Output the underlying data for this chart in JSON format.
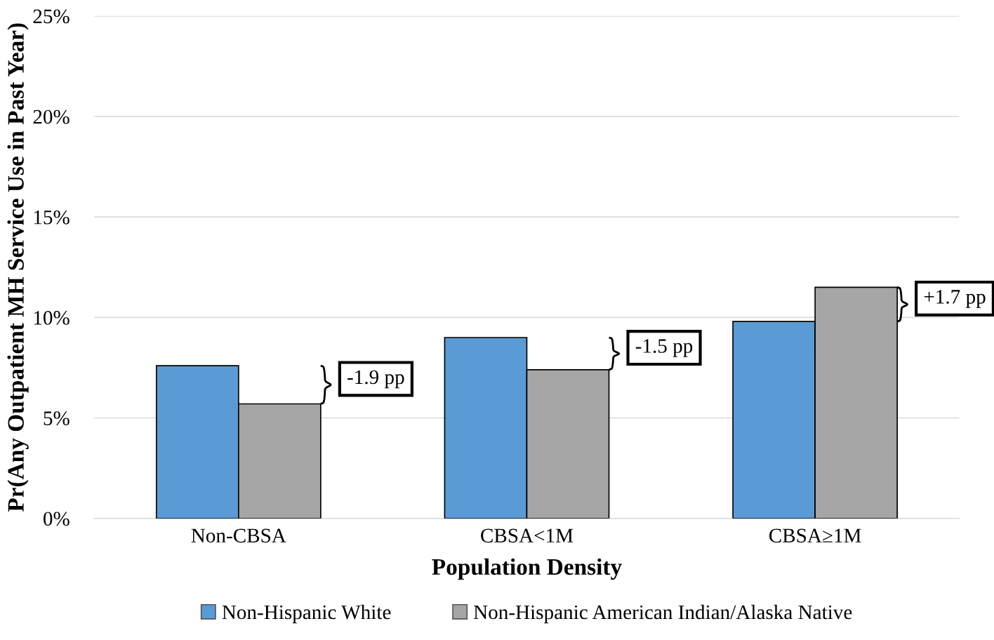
{
  "chart_data": {
    "type": "bar",
    "xlabel": "Population Density",
    "ylabel": "Pr(Any Outpatient MH Service Use in Past Year)",
    "categories": [
      "Non-CBSA",
      "CBSA<1M",
      "CBSA≥1M"
    ],
    "series": [
      {
        "name": "Non-Hispanic White",
        "color": "#5b9bd5",
        "values": [
          7.6,
          9.0,
          9.8
        ]
      },
      {
        "name": "Non-Hispanic American Indian/Alaska Native",
        "color": "#a5a5a5",
        "values": [
          5.7,
          7.4,
          11.5
        ]
      }
    ],
    "ylim": [
      0,
      25
    ],
    "yticks": [
      {
        "value": 0,
        "label": "0%"
      },
      {
        "value": 5,
        "label": "5%"
      },
      {
        "value": 10,
        "label": "10%"
      },
      {
        "value": 15,
        "label": "15%"
      },
      {
        "value": 20,
        "label": "20%"
      },
      {
        "value": 25,
        "label": "25%"
      }
    ],
    "grid": "y",
    "legend": "bottom",
    "annotations": [
      "-1.9 pp",
      "-1.5 pp",
      "+1.7 pp"
    ]
  }
}
